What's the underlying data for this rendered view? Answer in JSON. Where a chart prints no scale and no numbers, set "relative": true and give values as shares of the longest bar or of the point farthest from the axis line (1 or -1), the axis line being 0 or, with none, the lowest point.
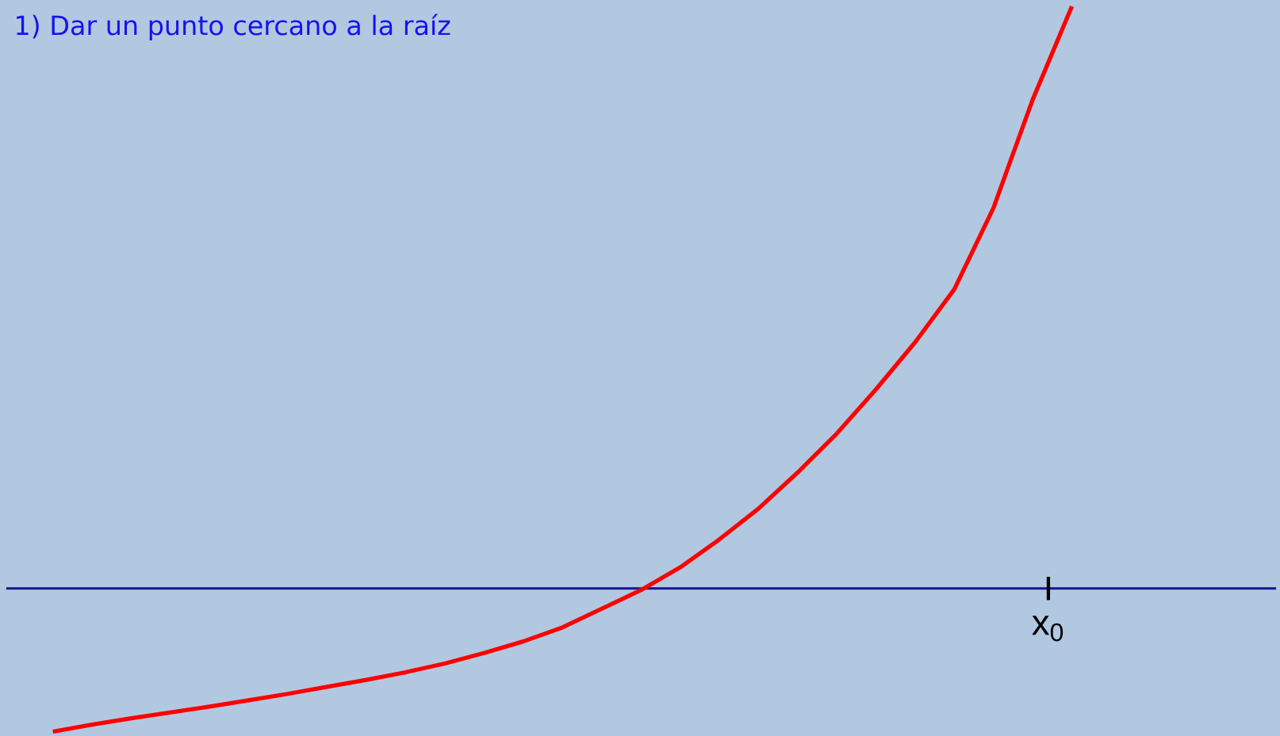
{
  "chart_data": {
    "type": "line",
    "relative": true,
    "title": "1)   Dar un punto cercano a la raíz",
    "categories": [
      null,
      null,
      null,
      null,
      null,
      null,
      null,
      null,
      null,
      null,
      null,
      null,
      null,
      null,
      null,
      null,
      null,
      null,
      null,
      null,
      null,
      null,
      null,
      null,
      null,
      null,
      null
    ],
    "values": [
      -0.246,
      -0.234,
      -0.223,
      -0.213,
      -0.203,
      -0.192,
      -0.181,
      -0.169,
      -0.157,
      -0.144,
      -0.129,
      -0.111,
      -0.091,
      -0.067,
      -0.035,
      -0.003,
      0.036,
      0.084,
      0.137,
      0.199,
      0.266,
      0.342,
      0.423,
      0.514,
      0.654,
      0.84,
      1.0
    ],
    "color": "#ff0000",
    "ref_lines": [
      {
        "axis": "y",
        "value": 0,
        "color": "#14148c"
      }
    ],
    "annotations": [
      "x$_{0}$"
    ]
  }
}
